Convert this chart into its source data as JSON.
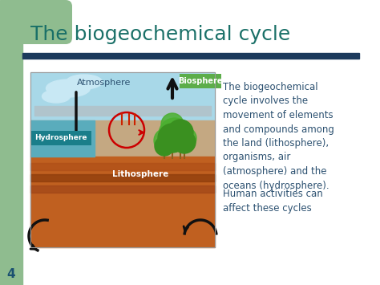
{
  "title": "The biogeochemical cycle",
  "title_color": "#1A7068",
  "title_fontsize": 18,
  "bg_color": "#FFFFFF",
  "left_bar_color": "#8FBC8F",
  "left_bar_top_color": "#8FBC8F",
  "divider_color": "#1C3A5C",
  "slide_number": "4",
  "body_text1": "The biogeochemical\ncycle involves the\nmovement of elements\nand compounds among\nthe land (lithosphere),\norganisms, air\n(atmosphere) and the\noceans (hydrosphere).",
  "body_text2": "Human activities can\naffect these cycles",
  "body_text_color": "#2B5070",
  "body_text_fontsize": 8.5,
  "atmosphere_label": "Atmosphere",
  "hydrosphere_label": "Hydrosphere",
  "lithosphere_label": "Lithosphere",
  "biosphere_label": "Biosphere",
  "atmosphere_label_color": "#2B5070",
  "biosphere_bg": "#5CAD4A",
  "hydrosphere_bg": "#1A7E8A",
  "sky_color": "#A8D8E8",
  "cloud_color": "#C8E8F4",
  "water_color": "#2A8898",
  "ground_color": "#C4A882",
  "litho_color": "#C06020",
  "litho_stripe": "#A04010",
  "arrow_color": "#111111",
  "red_circle_color": "#CC0000",
  "tree_foliage": "#3A9020",
  "tree_trunk": "#8B6020",
  "slide_num_color": "#1A5070"
}
